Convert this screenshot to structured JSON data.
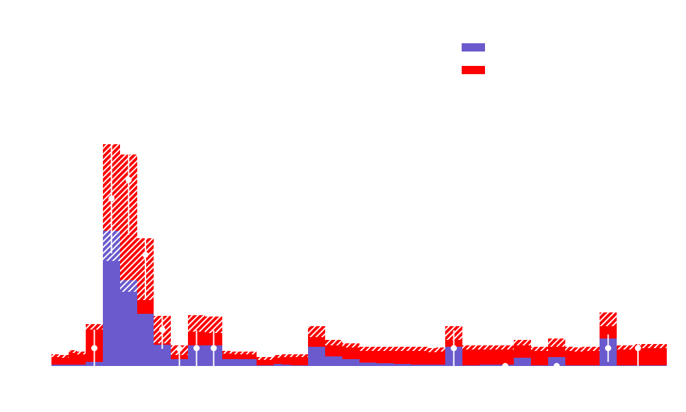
{
  "chart_data": {
    "type": "stacked-histogram",
    "bins": [
      75,
      87,
      100,
      112,
      125,
      150,
      175,
      200,
      224,
      249,
      274,
      299,
      324,
      336,
      349,
      361,
      374,
      399,
      411,
      424,
      449,
      474,
      499,
      524,
      549,
      574,
      599,
      624,
      636,
      649,
      674,
      699,
      724,
      749,
      774,
      786,
      799,
      824,
      836,
      849,
      874,
      899,
      924,
      936,
      949,
      972
    ],
    "series": [
      {
        "color": "#6a5acd",
        "values": [
          2,
          2,
          2,
          2,
          6,
          197,
          125,
          76,
          31,
          10,
          30,
          30,
          10,
          10,
          10,
          10,
          1,
          3,
          2,
          1,
          28,
          14,
          10,
          5,
          4,
          3,
          2,
          2,
          2,
          28,
          1,
          2,
          2,
          12,
          1,
          1,
          13,
          1,
          1,
          1,
          40,
          1,
          1,
          1,
          1
        ]
      },
      {
        "color": "#ff0000",
        "values": [
          13,
          12,
          19,
          17,
          51,
          41,
          83,
          65,
          22,
          13,
          32,
          30,
          10,
          9,
          9,
          9,
          10,
          11,
          13,
          14,
          22,
          20,
          20,
          20,
          21,
          22,
          23,
          21,
          22,
          20,
          26,
          25,
          25,
          22,
          24,
          24,
          21,
          24,
          23,
          24,
          28,
          26,
          28,
          28,
          28
        ]
      }
    ],
    "uncertainty": [
      2,
      2,
      2,
      2,
      4,
      85,
      100,
      45,
      20,
      7,
      12,
      12,
      2,
      2,
      2,
      2,
      2,
      2,
      2,
      2,
      8,
      4,
      3,
      3,
      3,
      3,
      3,
      3,
      3,
      10,
      3,
      3,
      3,
      4,
      3,
      3,
      6,
      3,
      3,
      3,
      10,
      3,
      3,
      3,
      3
    ],
    "data": {
      "color": "#ffffff",
      "values": [
        null,
        null,
        null,
        null,
        26,
        244,
        271,
        162,
        53,
        25,
        26,
        26,
        null,
        null,
        null,
        null,
        null,
        null,
        null,
        null,
        null,
        null,
        null,
        null,
        null,
        null,
        null,
        null,
        null,
        26,
        null,
        null,
        0,
        null,
        null,
        null,
        0,
        null,
        null,
        null,
        26,
        null,
        26,
        null,
        null
      ],
      "errors": [
        null,
        null,
        null,
        null,
        27,
        80,
        80,
        65,
        28,
        25,
        26,
        26,
        null,
        null,
        null,
        null,
        null,
        null,
        null,
        null,
        null,
        null,
        null,
        null,
        null,
        null,
        null,
        null,
        null,
        26,
        null,
        null,
        0,
        null,
        null,
        null,
        0,
        null,
        null,
        null,
        20,
        null,
        26,
        null,
        null
      ]
    },
    "xlim": [
      75,
      972
    ],
    "ylim": [
      0,
      500
    ],
    "legend": "upper right"
  }
}
